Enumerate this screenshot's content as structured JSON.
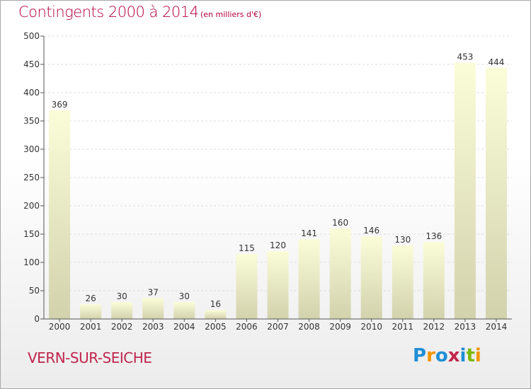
{
  "title": "Contingents 2000 à 2014",
  "subtitle": "(en milliers d'€)",
  "place": "VERN-SUR-SEICHE",
  "logo": {
    "text": "Proxiti",
    "letters": [
      {
        "ch": "P",
        "color": "#1f8fd6"
      },
      {
        "ch": "r",
        "color": "#f29400"
      },
      {
        "ch": "o",
        "color": "#1f8fd6"
      },
      {
        "ch": "x",
        "color": "#c0254d"
      },
      {
        "ch": "i",
        "color": "#1f8fd6"
      },
      {
        "ch": "t",
        "color": "#7ab800"
      },
      {
        "ch": "i",
        "color": "#f29400"
      }
    ]
  },
  "chart_data": {
    "type": "bar",
    "title": "Contingents 2000 à 2014",
    "subtitle": "(en milliers d'€)",
    "categories": [
      "2000",
      "2001",
      "2002",
      "2003",
      "2004",
      "2005",
      "2006",
      "2007",
      "2008",
      "2009",
      "2010",
      "2011",
      "2012",
      "2013",
      "2014"
    ],
    "values": [
      369,
      26,
      30,
      37,
      30,
      16,
      115,
      120,
      141,
      160,
      146,
      130,
      136,
      453,
      444
    ],
    "ylim": [
      0,
      500
    ],
    "yticks": [
      0,
      50,
      100,
      150,
      200,
      250,
      300,
      350,
      400,
      450,
      500
    ],
    "grid": true,
    "colors": {
      "bar_top": "#fbfdd9",
      "bar_bottom": "#d2d2ad",
      "grid": "#dddddd",
      "axis": "#555555"
    }
  }
}
